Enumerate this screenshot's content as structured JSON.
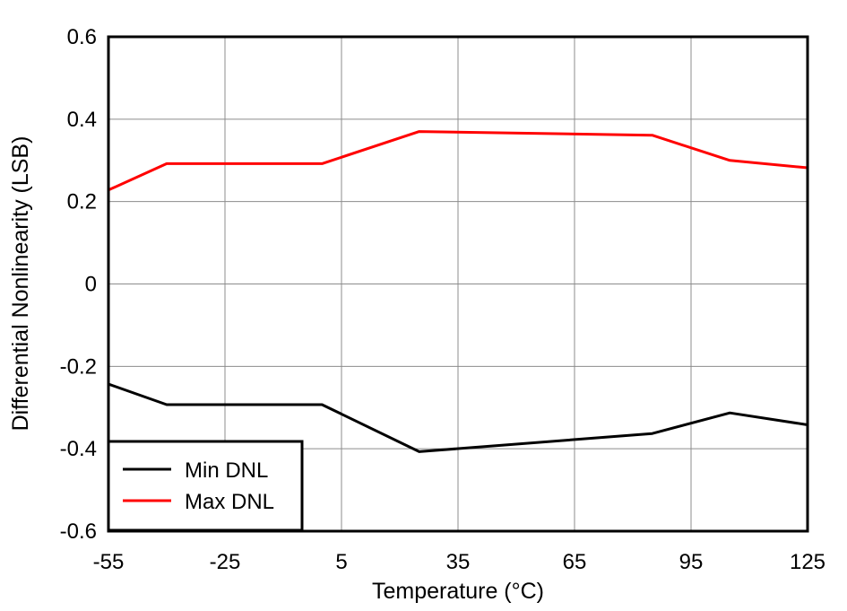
{
  "chart_data": {
    "type": "line",
    "xlabel": "Temperature (°C)",
    "ylabel": "Differential Nonlinearity (LSB)",
    "xlim": [
      -55,
      125
    ],
    "ylim": [
      -0.6,
      0.6
    ],
    "x_ticks": [
      -55,
      -25,
      5,
      35,
      65,
      95,
      125
    ],
    "x_tick_labels": [
      "-55",
      "-25",
      "5",
      "35",
      "65",
      "95",
      "125"
    ],
    "y_ticks": [
      0.6,
      0.4,
      0.2,
      0,
      -0.2,
      -0.4,
      -0.6
    ],
    "y_tick_labels": [
      "0.6",
      "0.4",
      "0.2",
      "0",
      "-0.2",
      "-0.4",
      "-0.6"
    ],
    "grid": true,
    "legend_position": "bottom-left",
    "series": [
      {
        "name": "Min DNL",
        "color": "#000000",
        "x": [
          -55,
          -40,
          0,
          25,
          85,
          105,
          125
        ],
        "y": [
          -0.243,
          -0.293,
          -0.293,
          -0.407,
          -0.363,
          -0.313,
          -0.342
        ]
      },
      {
        "name": "Max DNL",
        "color": "#ff0000",
        "x": [
          -55,
          -40,
          0,
          25,
          85,
          105,
          125
        ],
        "y": [
          0.228,
          0.292,
          0.292,
          0.37,
          0.361,
          0.3,
          0.282
        ]
      }
    ]
  }
}
